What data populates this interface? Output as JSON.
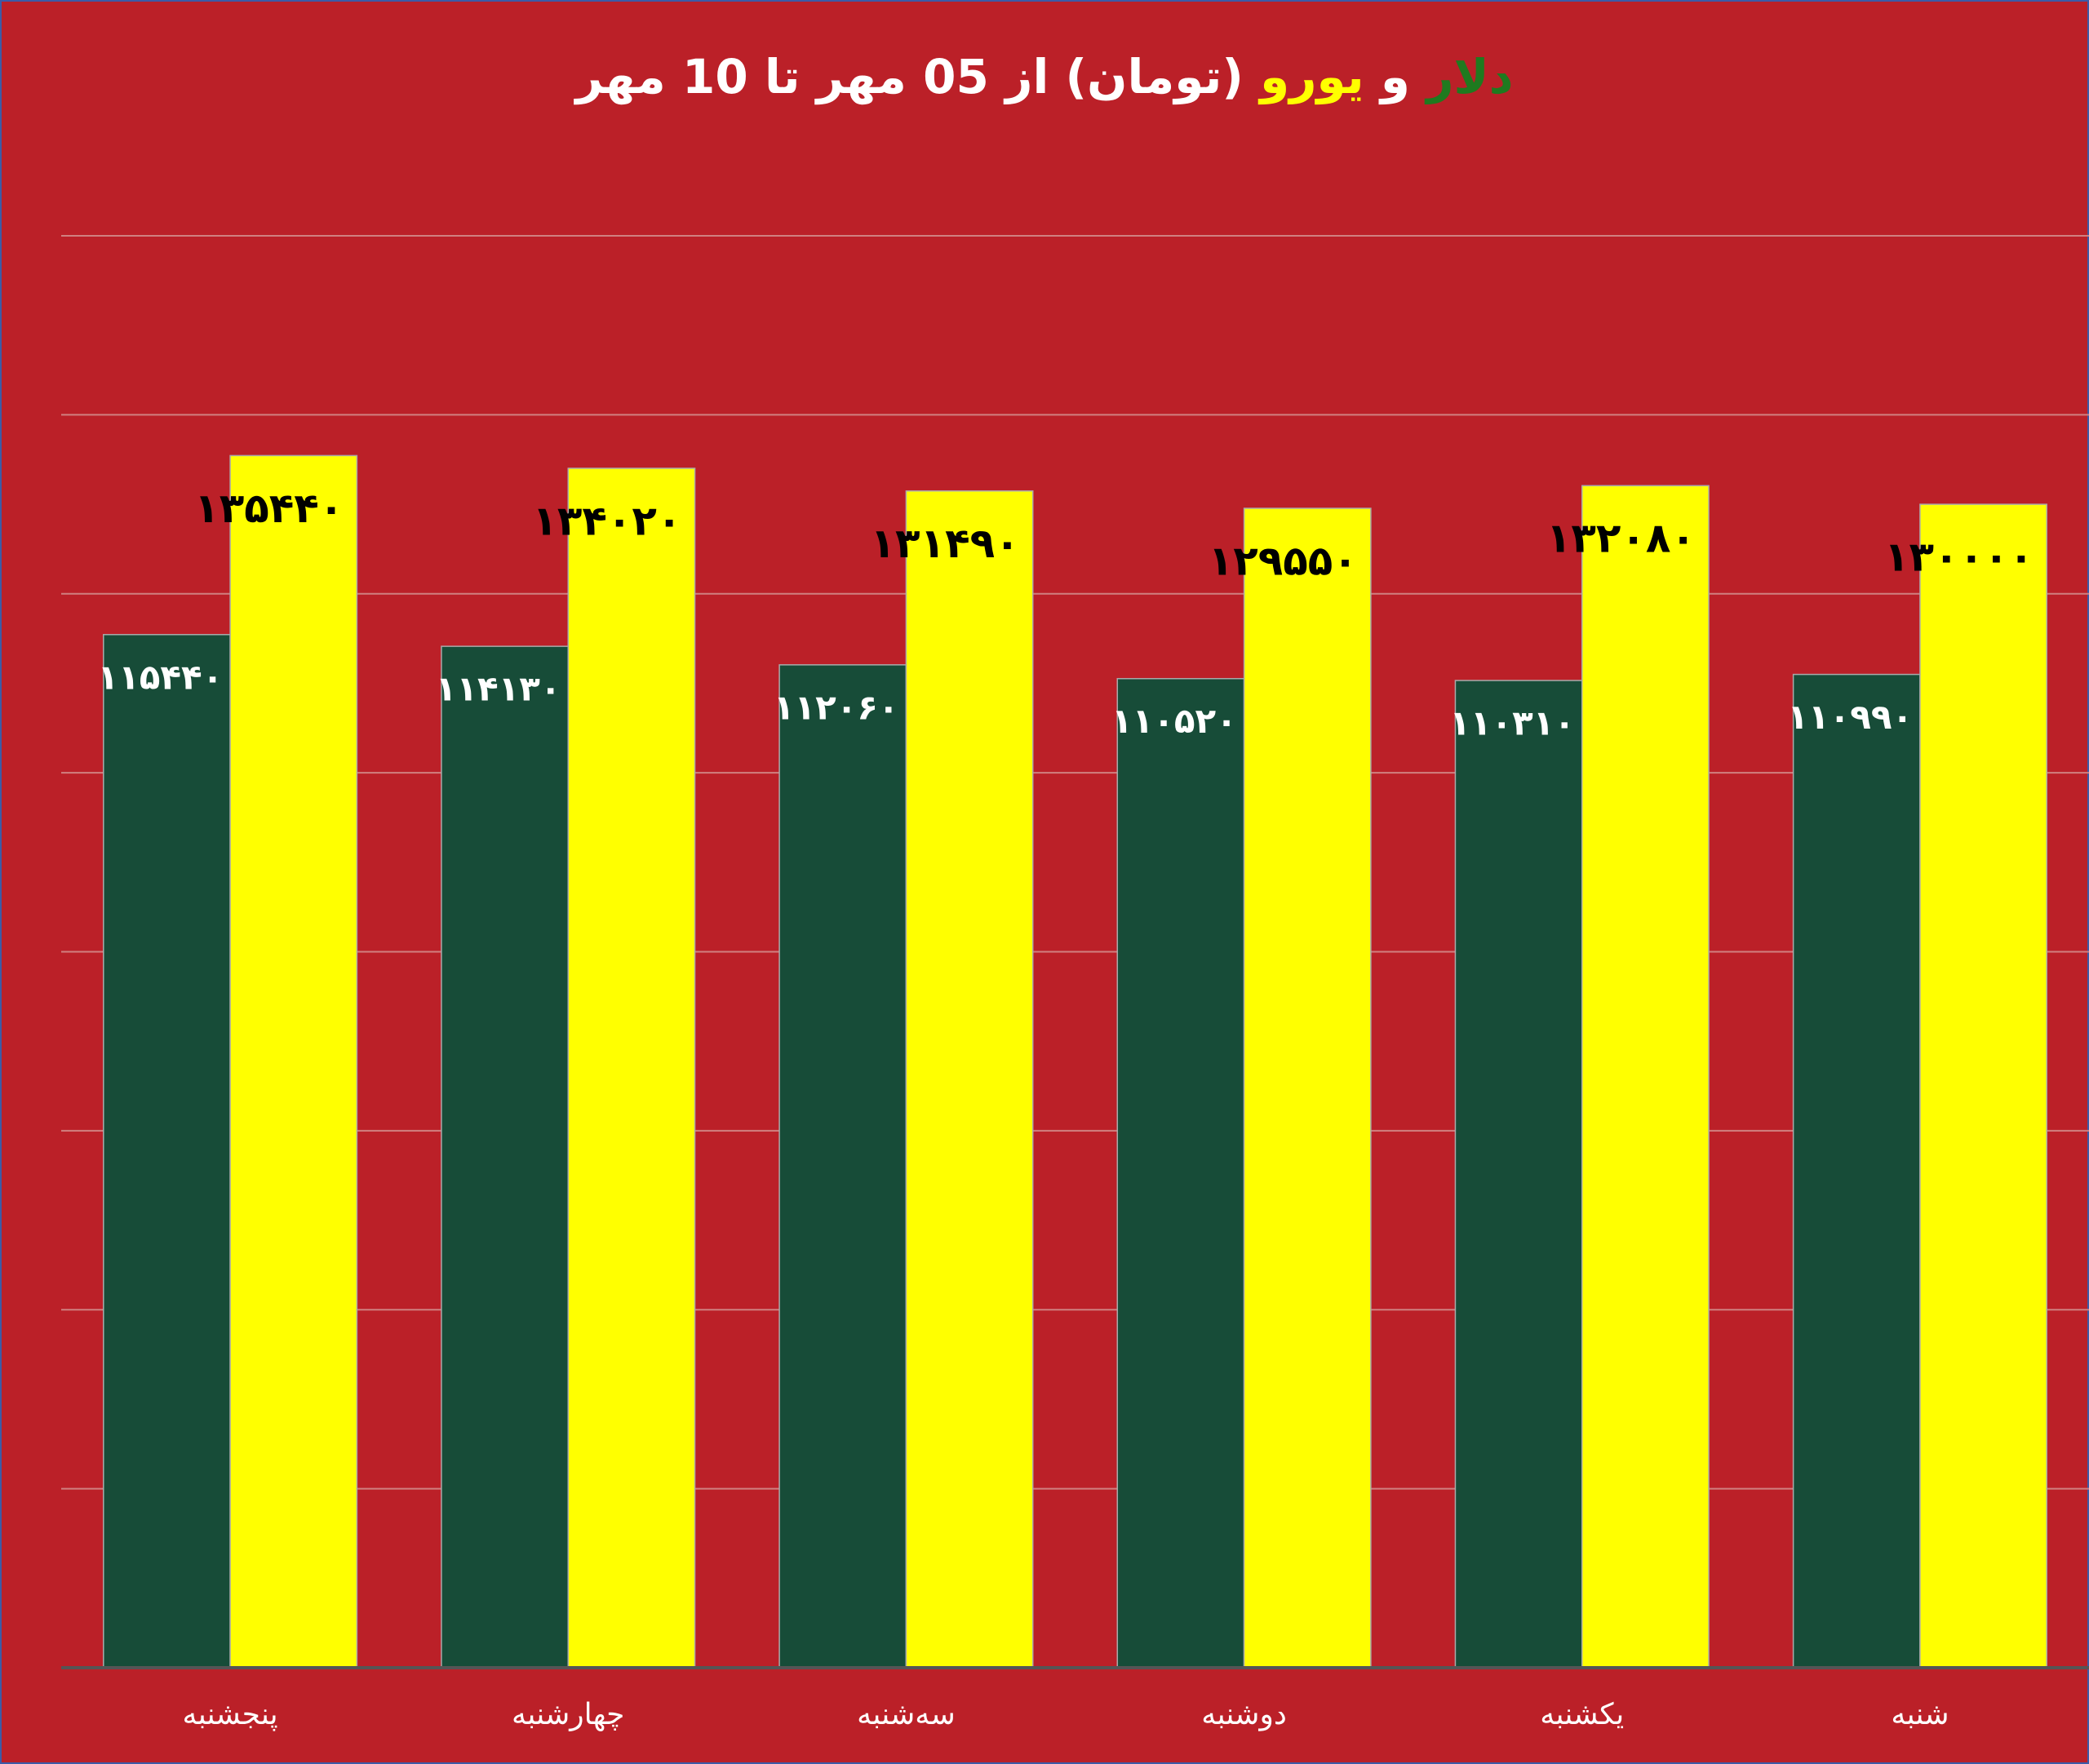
{
  "chart_data": {
    "type": "bar",
    "title": [
      {
        "text": "دلار",
        "color": "#1f7a1f"
      },
      {
        "text": " و ",
        "color": "#ffffff"
      },
      {
        "text": "یورو",
        "color": "#ffff00"
      },
      {
        "text": " (تومان) از 05 مهر تا 10 مهر",
        "color": "#ffffff"
      }
    ],
    "categories": [
      "پنجشنبه",
      "چهارشنبه",
      "سه‌شنبه",
      "دوشنبه",
      "یکشنبه",
      "شنبه"
    ],
    "series": [
      {
        "name": "دلار",
        "color": "#174c38",
        "label_color": "#ffffff",
        "values": [
          115440,
          114130,
          112060,
          110520,
          110310,
          110990
        ],
        "value_labels": [
          "۱۱۵۴۴۰",
          "۱۱۴۱۳۰",
          "۱۱۲۰۶۰",
          "۱۱۰۵۲۰",
          "۱۱۰۳۱۰",
          "۱۱۰۹۹۰"
        ]
      },
      {
        "name": "یورو",
        "color": "#ffff00",
        "label_color": "#000000",
        "values": [
          135440,
          134020,
          131490,
          129550,
          132080,
          130000
        ],
        "value_labels": [
          "۱۳۵۴۴۰",
          "۱۳۴۰۲۰",
          "۱۳۱۴۹۰",
          "۱۲۹۵۵۰",
          "۱۳۲۰۸۰",
          "۱۳۰۰۰۰"
        ]
      }
    ],
    "ylim": [
      0,
      160000
    ],
    "yticks": [
      0,
      20000,
      40000,
      60000,
      80000,
      100000,
      120000,
      140000,
      160000
    ],
    "grid": true
  }
}
